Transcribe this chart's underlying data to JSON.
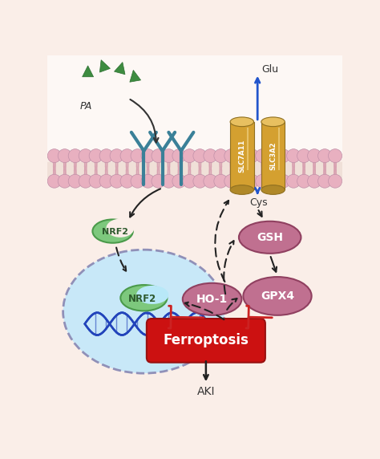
{
  "bg_color": "#faeee8",
  "labels": {
    "PA": "PA",
    "Glu": "Glu",
    "Cys": "Cys",
    "NRF2_free": "NRF2",
    "NRF2_nucleus": "NRF2",
    "GSH": "GSH",
    "GPX4": "GPX4",
    "HO1": "HO-1",
    "Ferroptosis": "Ferroptosis",
    "AKI": "AKI",
    "SLC7A11": "SLC7A11",
    "SLC3A2": "SLC3A2"
  },
  "colors": {
    "pa_green": "#3d8c40",
    "pa_green_dark": "#2d6e30",
    "receptor_color": "#3a8098",
    "nrf2_green_light": "#7dc87d",
    "nrf2_green_dark": "#4a9a4a",
    "nucleus_blue_center": "#b8e8f8",
    "nucleus_blue_edge": "#70b8d8",
    "nucleus_border": "#9090b8",
    "protein_pink": "#c07090",
    "protein_pink_dark": "#904060",
    "ferroptosis_red": "#cc1111",
    "transporter_gold": "#d4a030",
    "transporter_light": "#e8c060",
    "transporter_dark": "#a07820",
    "arrow_black": "#222222",
    "arrow_red": "#cc2222",
    "arrow_blue": "#2255cc",
    "dna_blue": "#2244bb",
    "membrane_pink": "#e8b0c0",
    "membrane_bg": "#f5e0d8",
    "membrane_tail": "#d8a0b0"
  }
}
